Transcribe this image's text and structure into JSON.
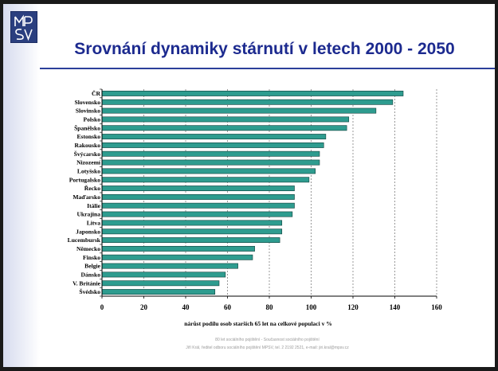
{
  "slide": {
    "logo_text": "MPSV",
    "title": "Srovnání dynamiky stárnutí v letech 2000 - 2050",
    "footer_line1": "80 let sociálního pojištění - Současnost sociálního pojištění",
    "footer_line2": "Jiří Král, ředitel odboru sociálního pojištění MPSV, tel. 2 2192 2521, e-mail: jiri.kral@mpsv.cz"
  },
  "chart_data": {
    "type": "bar",
    "orientation": "horizontal",
    "categories": [
      "ČR",
      "Slovensko",
      "Slovinsko",
      "Polsko",
      "Španělsko",
      "Estonsko",
      "Rakousko",
      "Švýcarsko",
      "Nizozemí",
      "Lotyšsko",
      "Portugalsko",
      "Řecko",
      "Maďarsko",
      "Itálie",
      "Ukrajina",
      "Litva",
      "Japonsko",
      "Lucembursk",
      "Německo",
      "Finsko",
      "Belgie",
      "Dánsko",
      "V. Británie",
      "Švédsko"
    ],
    "values": [
      144,
      139,
      131,
      118,
      117,
      107,
      106,
      104,
      104,
      102,
      99,
      92,
      92,
      92,
      91,
      86,
      86,
      85,
      73,
      72,
      65,
      59,
      56,
      54
    ],
    "xlim": [
      0,
      160
    ],
    "xticks": [
      0,
      20,
      40,
      60,
      80,
      100,
      120,
      140,
      160
    ],
    "xlabel": "nárůst podílu osob starších 65 let na celkové populaci v %",
    "ylabel": "",
    "grid": "vertical dashed",
    "bar_color": "#2e9c8f",
    "bar_edge_color": "#0f3f3a"
  }
}
